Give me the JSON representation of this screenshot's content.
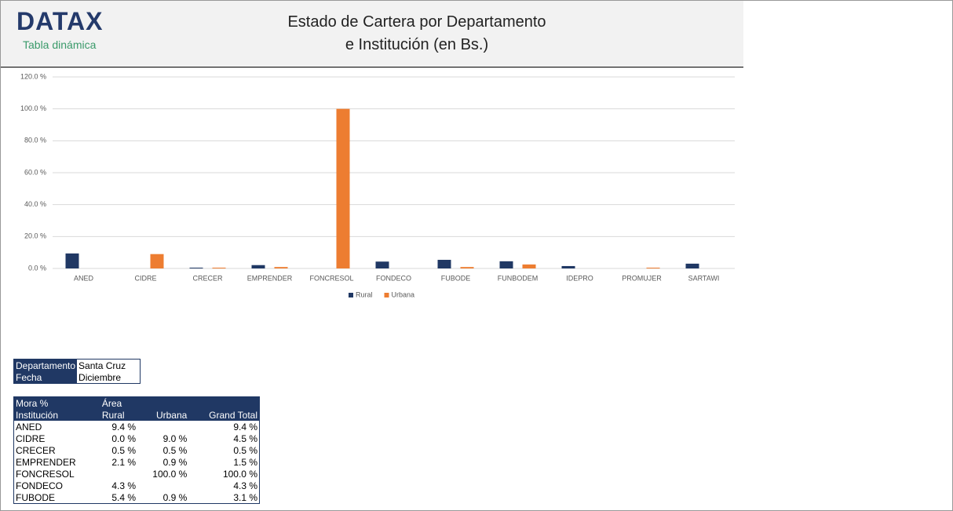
{
  "header": {
    "logo": "DATAX",
    "subtitle": "Tabla dinámica",
    "title_line1": "Estado de Cartera por Departamento",
    "title_line2": "e Institución (en Bs.)"
  },
  "chart_data": {
    "type": "bar",
    "categories": [
      "ANED",
      "CIDRE",
      "CRECER",
      "EMPRENDER",
      "FONCRESOL",
      "FONDECO",
      "FUBODE",
      "FUNBODEM",
      "IDEPRO",
      "PROMUJER",
      "SARTAWI"
    ],
    "series": [
      {
        "name": "Rural",
        "color": "#203864",
        "values": [
          9.4,
          0.0,
          0.5,
          2.1,
          null,
          4.3,
          5.4,
          4.5,
          1.5,
          0,
          3
        ]
      },
      {
        "name": "Urbana",
        "color": "#ed7d31",
        "values": [
          null,
          9.0,
          0.5,
          0.9,
          100.0,
          null,
          0.9,
          2.5,
          null,
          0.5,
          null
        ]
      }
    ],
    "ylim": [
      0,
      120
    ],
    "yticks": [
      {
        "value": 0,
        "label": "0.0 %"
      },
      {
        "value": 20,
        "label": "20.0 %"
      },
      {
        "value": 40,
        "label": "40.0 %"
      },
      {
        "value": 60,
        "label": "60.0 %"
      },
      {
        "value": 80,
        "label": "80.0 %"
      },
      {
        "value": 100,
        "label": "100.0 %"
      },
      {
        "value": 120,
        "label": "120.0 %"
      }
    ],
    "grid": true,
    "legend": "bottom"
  },
  "filters": {
    "rows": [
      [
        "Departamento",
        "Santa Cruz"
      ],
      [
        "Fecha",
        "Diciembre"
      ]
    ]
  },
  "table": {
    "corner": "Mora %",
    "column_field": "Área",
    "header": [
      "Institución",
      "Rural",
      "Urbana",
      "Grand Total"
    ],
    "rows": [
      [
        "ANED",
        "9.4 %",
        null,
        "9.4 %"
      ],
      [
        "CIDRE",
        "0.0 %",
        "9.0 %",
        "4.5 %"
      ],
      [
        "CRECER",
        "0.5 %",
        "0.5 %",
        "0.5 %"
      ],
      [
        "EMPRENDER",
        "2.1 %",
        "0.9 %",
        "1.5 %"
      ],
      [
        "FONCRESOL",
        null,
        "100.0 %",
        "100.0 %"
      ],
      [
        "FONDECO",
        "4.3 %",
        null,
        "4.3 %"
      ],
      [
        "FUBODE",
        "5.4 %",
        "0.9 %",
        "3.1 %"
      ]
    ]
  }
}
